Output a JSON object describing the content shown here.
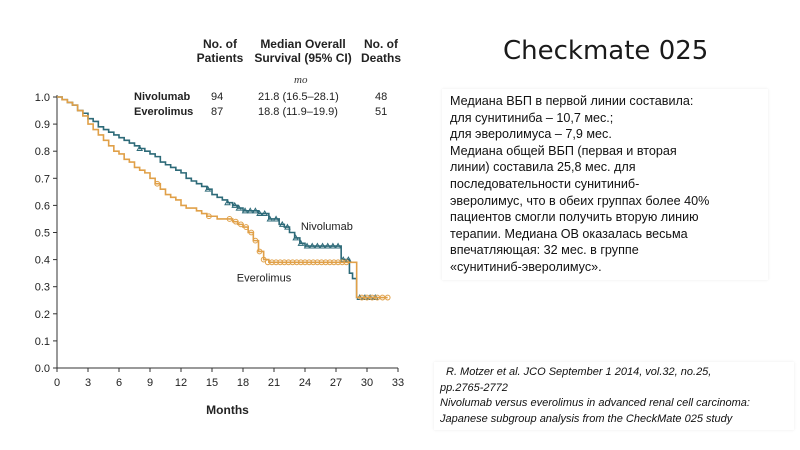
{
  "slide": {
    "title": "Checkmate 025",
    "summary_lines": [
      "Медиана ВБП в первой линии составила:",
      "для сунитиниба – 10,7 мес.;",
      "для эверолимуса – 7,9 мес.",
      "Медиана общей ВБП (первая и вторая",
      "линии) составила 25,8 мес. для",
      "последовательности сунитиниб-",
      "эверолимус, что в обеих группах более 40%",
      "пациентов смогли получить вторую линию",
      "терапии. Медиана ОВ оказалась весьма",
      "впечатляющая: 32 мес. в группе",
      "«сунитиниб-эверолимус»."
    ],
    "reference_lines": [
      "R. Motzer et al. JCO September 1 2014, vol.32, no.25,",
      "pp.2765-2772",
      "Nivolumab versus everolimus in advanced renal cell carcinoma:",
      "Japanese subgroup analysis from the CheckMate 025 study"
    ]
  },
  "table": {
    "headers": {
      "patients": [
        "No. of",
        "Patients"
      ],
      "median_os": [
        "Median Overall",
        "Survival (95% CI)"
      ],
      "deaths": [
        "No. of",
        "Deaths"
      ]
    },
    "unit": "mo",
    "rows": [
      {
        "name": "Nivolumab",
        "patients": "94",
        "median": "21.8 (16.5–28.1)",
        "deaths": "48"
      },
      {
        "name": "Everolimus",
        "patients": "87",
        "median": "18.8 (11.9–19.9)",
        "deaths": "51"
      }
    ]
  },
  "chart_data": {
    "type": "line",
    "xlabel": "Months",
    "ylabel": "",
    "xlim": [
      0,
      33
    ],
    "ylim": [
      0,
      1.0
    ],
    "x_ticks": [
      "0",
      "3",
      "6",
      "9",
      "12",
      "15",
      "18",
      "21",
      "24",
      "27",
      "30",
      "33"
    ],
    "y_ticks": [
      "0.0",
      "0.1",
      "0.2",
      "0.3",
      "0.4",
      "0.5",
      "0.6",
      "0.7",
      "0.8",
      "0.9",
      "1.0"
    ],
    "series": [
      {
        "name": "Nivolumab",
        "color": "#2d6a78",
        "points": [
          [
            0,
            1.0
          ],
          [
            0.5,
            0.99
          ],
          [
            1,
            0.98
          ],
          [
            1.5,
            0.97
          ],
          [
            2,
            0.95
          ],
          [
            2.5,
            0.94
          ],
          [
            3,
            0.92
          ],
          [
            3.5,
            0.91
          ],
          [
            4,
            0.89
          ],
          [
            4.5,
            0.88
          ],
          [
            5,
            0.87
          ],
          [
            5.5,
            0.86
          ],
          [
            6,
            0.85
          ],
          [
            6.5,
            0.84
          ],
          [
            7,
            0.83
          ],
          [
            7.5,
            0.82
          ],
          [
            8,
            0.81
          ],
          [
            8.5,
            0.8
          ],
          [
            9,
            0.79
          ],
          [
            9.5,
            0.78
          ],
          [
            10,
            0.76
          ],
          [
            10.5,
            0.75
          ],
          [
            11,
            0.74
          ],
          [
            11.5,
            0.73
          ],
          [
            12,
            0.72
          ],
          [
            12.5,
            0.7
          ],
          [
            13,
            0.69
          ],
          [
            13.5,
            0.68
          ],
          [
            14,
            0.67
          ],
          [
            14.5,
            0.66
          ],
          [
            15,
            0.64
          ],
          [
            15.5,
            0.63
          ],
          [
            16,
            0.62
          ],
          [
            16.5,
            0.61
          ],
          [
            17,
            0.6
          ],
          [
            17.5,
            0.59
          ],
          [
            18,
            0.58
          ],
          [
            19,
            0.58
          ],
          [
            19.5,
            0.57
          ],
          [
            20,
            0.57
          ],
          [
            20.5,
            0.55
          ],
          [
            21,
            0.55
          ],
          [
            21.5,
            0.53
          ],
          [
            22,
            0.52
          ],
          [
            22.5,
            0.5
          ],
          [
            23,
            0.48
          ],
          [
            23.5,
            0.46
          ],
          [
            24,
            0.45
          ],
          [
            25,
            0.45
          ],
          [
            26,
            0.45
          ],
          [
            27,
            0.45
          ],
          [
            27.5,
            0.4
          ],
          [
            28,
            0.4
          ],
          [
            28.3,
            0.35
          ],
          [
            28.6,
            0.33
          ],
          [
            29,
            0.26
          ],
          [
            30,
            0.26
          ],
          [
            31,
            0.26
          ]
        ],
        "censored": [
          [
            8,
            0.81
          ],
          [
            14.6,
            0.66
          ],
          [
            16.5,
            0.61
          ],
          [
            17.2,
            0.6
          ],
          [
            17.6,
            0.59
          ],
          [
            18.2,
            0.58
          ],
          [
            18.7,
            0.58
          ],
          [
            19.2,
            0.58
          ],
          [
            19.6,
            0.57
          ],
          [
            20.1,
            0.57
          ],
          [
            20.6,
            0.55
          ],
          [
            21.2,
            0.55
          ],
          [
            21.8,
            0.53
          ],
          [
            22.3,
            0.52
          ],
          [
            23.1,
            0.48
          ],
          [
            23.6,
            0.46
          ],
          [
            24.2,
            0.45
          ],
          [
            24.7,
            0.45
          ],
          [
            25.2,
            0.45
          ],
          [
            25.7,
            0.45
          ],
          [
            26.2,
            0.45
          ],
          [
            26.7,
            0.45
          ],
          [
            27.2,
            0.45
          ],
          [
            27.7,
            0.4
          ],
          [
            28.2,
            0.4
          ],
          [
            29.3,
            0.26
          ],
          [
            29.8,
            0.26
          ],
          [
            30.3,
            0.26
          ],
          [
            30.8,
            0.26
          ]
        ],
        "label": "Nivolumab"
      },
      {
        "name": "Everolimus",
        "color": "#e0a048",
        "points": [
          [
            0,
            1.0
          ],
          [
            0.5,
            0.99
          ],
          [
            1,
            0.98
          ],
          [
            1.5,
            0.97
          ],
          [
            2,
            0.95
          ],
          [
            2.5,
            0.93
          ],
          [
            3,
            0.9
          ],
          [
            3.5,
            0.88
          ],
          [
            4,
            0.86
          ],
          [
            4.5,
            0.84
          ],
          [
            5,
            0.82
          ],
          [
            5.5,
            0.8
          ],
          [
            6,
            0.79
          ],
          [
            6.5,
            0.77
          ],
          [
            7,
            0.76
          ],
          [
            7.5,
            0.74
          ],
          [
            8,
            0.73
          ],
          [
            8.5,
            0.72
          ],
          [
            9,
            0.7
          ],
          [
            9.5,
            0.68
          ],
          [
            10,
            0.66
          ],
          [
            10.5,
            0.64
          ],
          [
            11,
            0.63
          ],
          [
            11.5,
            0.62
          ],
          [
            12,
            0.6
          ],
          [
            12.5,
            0.59
          ],
          [
            13,
            0.59
          ],
          [
            13.5,
            0.58
          ],
          [
            14,
            0.57
          ],
          [
            14.5,
            0.56
          ],
          [
            15,
            0.56
          ],
          [
            15.5,
            0.55
          ],
          [
            16,
            0.55
          ],
          [
            16.5,
            0.55
          ],
          [
            17,
            0.54
          ],
          [
            17.5,
            0.53
          ],
          [
            18,
            0.52
          ],
          [
            18.5,
            0.5
          ],
          [
            19,
            0.47
          ],
          [
            19.5,
            0.43
          ],
          [
            20,
            0.4
          ],
          [
            20.5,
            0.39
          ],
          [
            21,
            0.39
          ],
          [
            22,
            0.39
          ],
          [
            23,
            0.39
          ],
          [
            24,
            0.39
          ],
          [
            25,
            0.39
          ],
          [
            26,
            0.39
          ],
          [
            27,
            0.39
          ],
          [
            28,
            0.39
          ],
          [
            28.5,
            0.39
          ],
          [
            29,
            0.26
          ],
          [
            30,
            0.26
          ],
          [
            31,
            0.26
          ],
          [
            32,
            0.26
          ]
        ],
        "censored": [
          [
            9.7,
            0.68
          ],
          [
            14.7,
            0.56
          ],
          [
            16.7,
            0.55
          ],
          [
            17.3,
            0.54
          ],
          [
            17.8,
            0.53
          ],
          [
            18.3,
            0.52
          ],
          [
            18.8,
            0.5
          ],
          [
            19.2,
            0.47
          ],
          [
            19.6,
            0.43
          ],
          [
            20,
            0.4
          ],
          [
            20.4,
            0.39
          ],
          [
            20.8,
            0.39
          ],
          [
            21.2,
            0.39
          ],
          [
            21.6,
            0.39
          ],
          [
            22,
            0.39
          ],
          [
            22.4,
            0.39
          ],
          [
            22.8,
            0.39
          ],
          [
            23.2,
            0.39
          ],
          [
            23.6,
            0.39
          ],
          [
            24,
            0.39
          ],
          [
            24.4,
            0.39
          ],
          [
            24.8,
            0.39
          ],
          [
            25.2,
            0.39
          ],
          [
            25.6,
            0.39
          ],
          [
            26,
            0.39
          ],
          [
            26.4,
            0.39
          ],
          [
            26.8,
            0.39
          ],
          [
            27.2,
            0.39
          ],
          [
            27.6,
            0.39
          ],
          [
            28,
            0.39
          ],
          [
            29.5,
            0.26
          ],
          [
            30,
            0.26
          ],
          [
            30.5,
            0.26
          ],
          [
            31,
            0.26
          ],
          [
            31.5,
            0.26
          ],
          [
            32,
            0.26
          ]
        ],
        "label": "Everolimus"
      }
    ]
  }
}
